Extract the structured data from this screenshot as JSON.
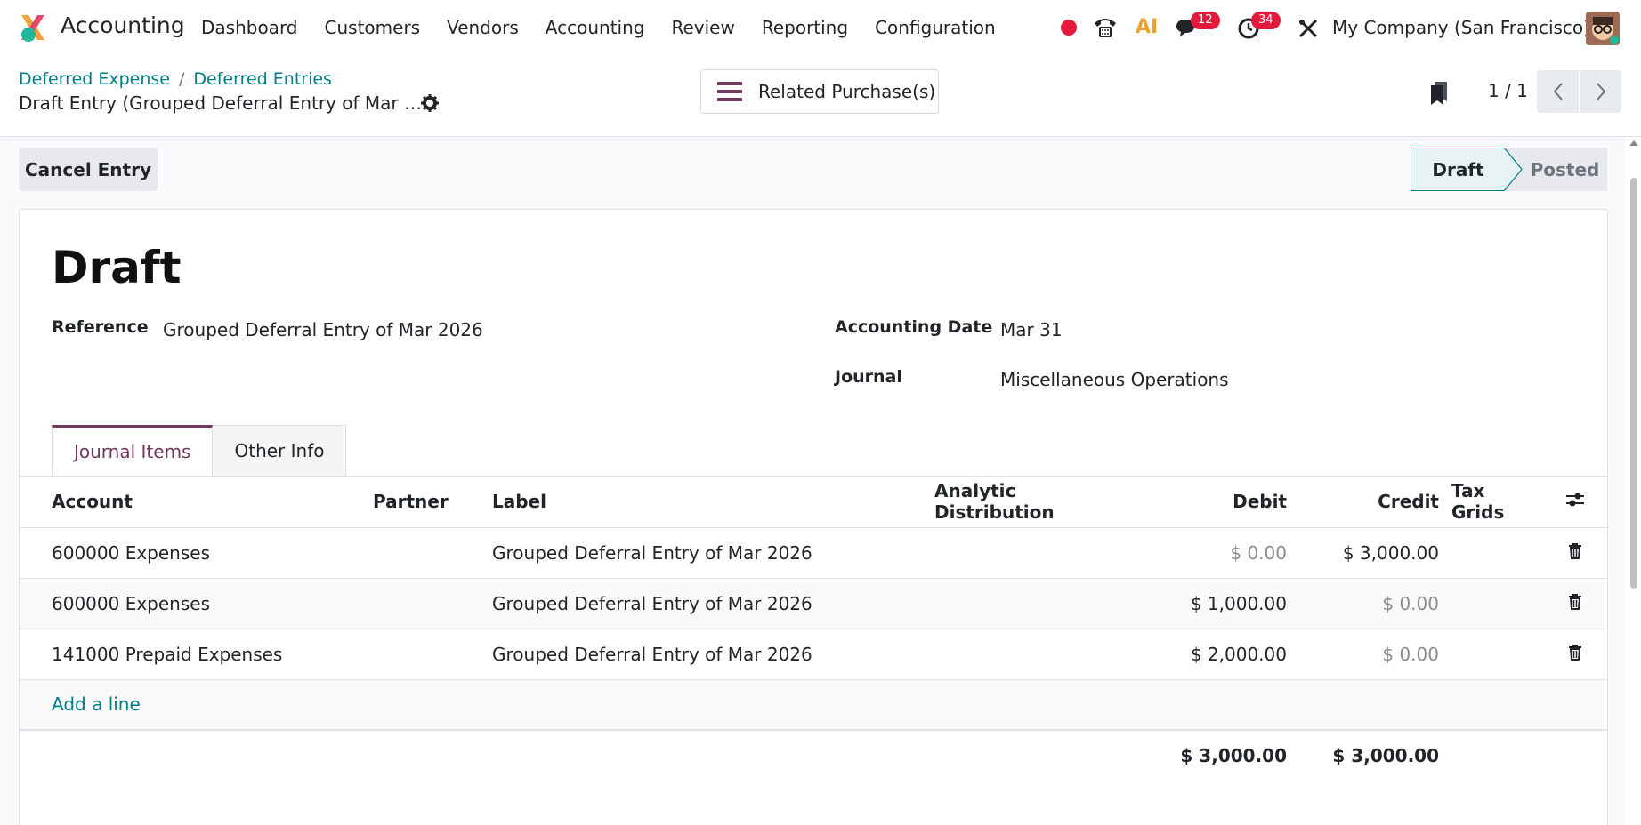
{
  "app": {
    "title": "Accounting",
    "menu": [
      "Dashboard",
      "Customers",
      "Vendors",
      "Accounting",
      "Review",
      "Reporting",
      "Configuration"
    ],
    "company": "My Company (San Francisco)",
    "badges": {
      "messages": "12",
      "activities": "34"
    },
    "ai_label": "AI"
  },
  "breadcrumb": {
    "items": [
      "Deferred Expense",
      "Deferred Entries"
    ],
    "separator": "/",
    "current": "Draft Entry (Grouped Deferral Entry of Mar …"
  },
  "actions": {
    "related": "Related Purchase(s)",
    "cancel": "Cancel Entry"
  },
  "pager": {
    "value": "1 / 1"
  },
  "statusbar": {
    "active": "Draft",
    "next": "Posted"
  },
  "form": {
    "state_title": "Draft",
    "reference_label": "Reference",
    "reference_value": "Grouped Deferral Entry of Mar 2026",
    "date_label": "Accounting Date",
    "date_value": "Mar 31",
    "journal_label": "Journal",
    "journal_value": "Miscellaneous Operations"
  },
  "tabs": [
    "Journal Items",
    "Other Info"
  ],
  "table": {
    "headers": {
      "account": "Account",
      "partner": "Partner",
      "label": "Label",
      "analytic": "Analytic Distribution",
      "debit": "Debit",
      "credit": "Credit",
      "taxgrids": "Tax Grids"
    },
    "rows": [
      {
        "account": "600000 Expenses",
        "partner": "",
        "label": "Grouped Deferral Entry of Mar 2026",
        "debit": "$ 0.00",
        "credit": "$ 3,000.00"
      },
      {
        "account": "600000 Expenses",
        "partner": "",
        "label": "Grouped Deferral Entry of Mar 2026",
        "debit": "$ 1,000.00",
        "credit": "$ 0.00"
      },
      {
        "account": "141000 Prepaid Expenses",
        "partner": "",
        "label": "Grouped Deferral Entry of Mar 2026",
        "debit": "$ 2,000.00",
        "credit": "$ 0.00"
      }
    ],
    "add_line": "Add a line",
    "total_debit": "$ 3,000.00",
    "total_credit": "$ 3,000.00"
  },
  "colors": {
    "brand": "#71395f",
    "link": "#017e84",
    "badge": "#e21b3c"
  }
}
